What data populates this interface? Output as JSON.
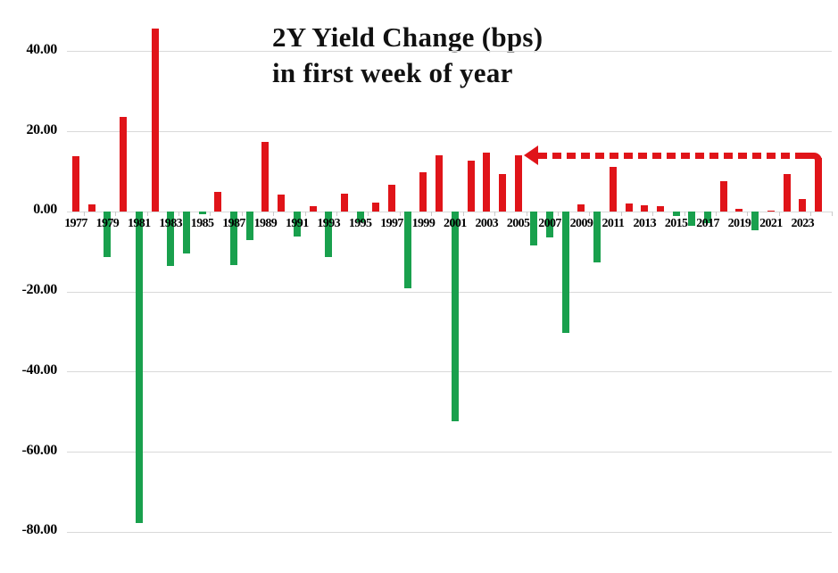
{
  "chart_data": {
    "type": "bar",
    "title_lines": [
      "2Y Yield Change (bps)",
      "in first week of year"
    ],
    "ylabel": "",
    "xlabel": "",
    "unit": "bps",
    "grid": "horizontal",
    "legend": "none",
    "ylim": [
      -80,
      46
    ],
    "years": [
      1977,
      1978,
      1979,
      1980,
      1981,
      1982,
      1983,
      1984,
      1985,
      1986,
      1987,
      1988,
      1989,
      1990,
      1991,
      1992,
      1993,
      1994,
      1995,
      1996,
      1997,
      1998,
      1999,
      2000,
      2001,
      2002,
      2003,
      2004,
      2005,
      2006,
      2007,
      2008,
      2009,
      2010,
      2011,
      2012,
      2013,
      2014,
      2015,
      2016,
      2017,
      2018,
      2019,
      2020,
      2021,
      2022,
      2023,
      2024
    ],
    "values": [
      13.8,
      1.9,
      -11.2,
      23.7,
      -77.7,
      45.7,
      -13.6,
      -10.5,
      -0.6,
      5.0,
      -13.4,
      -7.0,
      17.4,
      4.3,
      -6.2,
      1.4,
      -11.4,
      4.6,
      -2.5,
      2.3,
      6.8,
      -19.1,
      9.8,
      14.1,
      -52.3,
      12.7,
      14.8,
      9.5,
      14.0,
      -8.5,
      -6.3,
      -30.3,
      1.8,
      -12.7,
      11.3,
      2.0,
      1.7,
      1.4,
      -1.0,
      -3.4,
      -2.8,
      7.6,
      0.8,
      -4.7,
      0.3,
      9.4,
      3.2,
      13.5
    ],
    "xtick_labels": [
      "1977",
      "1979",
      "1981",
      "1983",
      "1985",
      "1987",
      "1989",
      "1991",
      "1993",
      "1995",
      "1997",
      "1999",
      "2001",
      "2003",
      "2005",
      "2007",
      "2009",
      "2011",
      "2013",
      "2015",
      "2017",
      "2019",
      "2021",
      "2023"
    ],
    "ytick_values": [
      40,
      20,
      0,
      -20,
      -40,
      -60,
      -80
    ],
    "ytick_labels": [
      "40.00",
      "20.00",
      "0.00",
      "-20.00",
      "-40.00",
      "-60.00",
      "-80.00"
    ],
    "annotation": {
      "shape": "dashed-horizontal-arrow",
      "start_year": 2024,
      "tip_at_year": 2005,
      "y_bps": 14.0,
      "color": "#e01419"
    },
    "colors": {
      "positive": "#e01419",
      "negative": "#19a04d",
      "gridline": "#d9d9d9",
      "text": "#000000",
      "background": "#ffffff"
    }
  }
}
